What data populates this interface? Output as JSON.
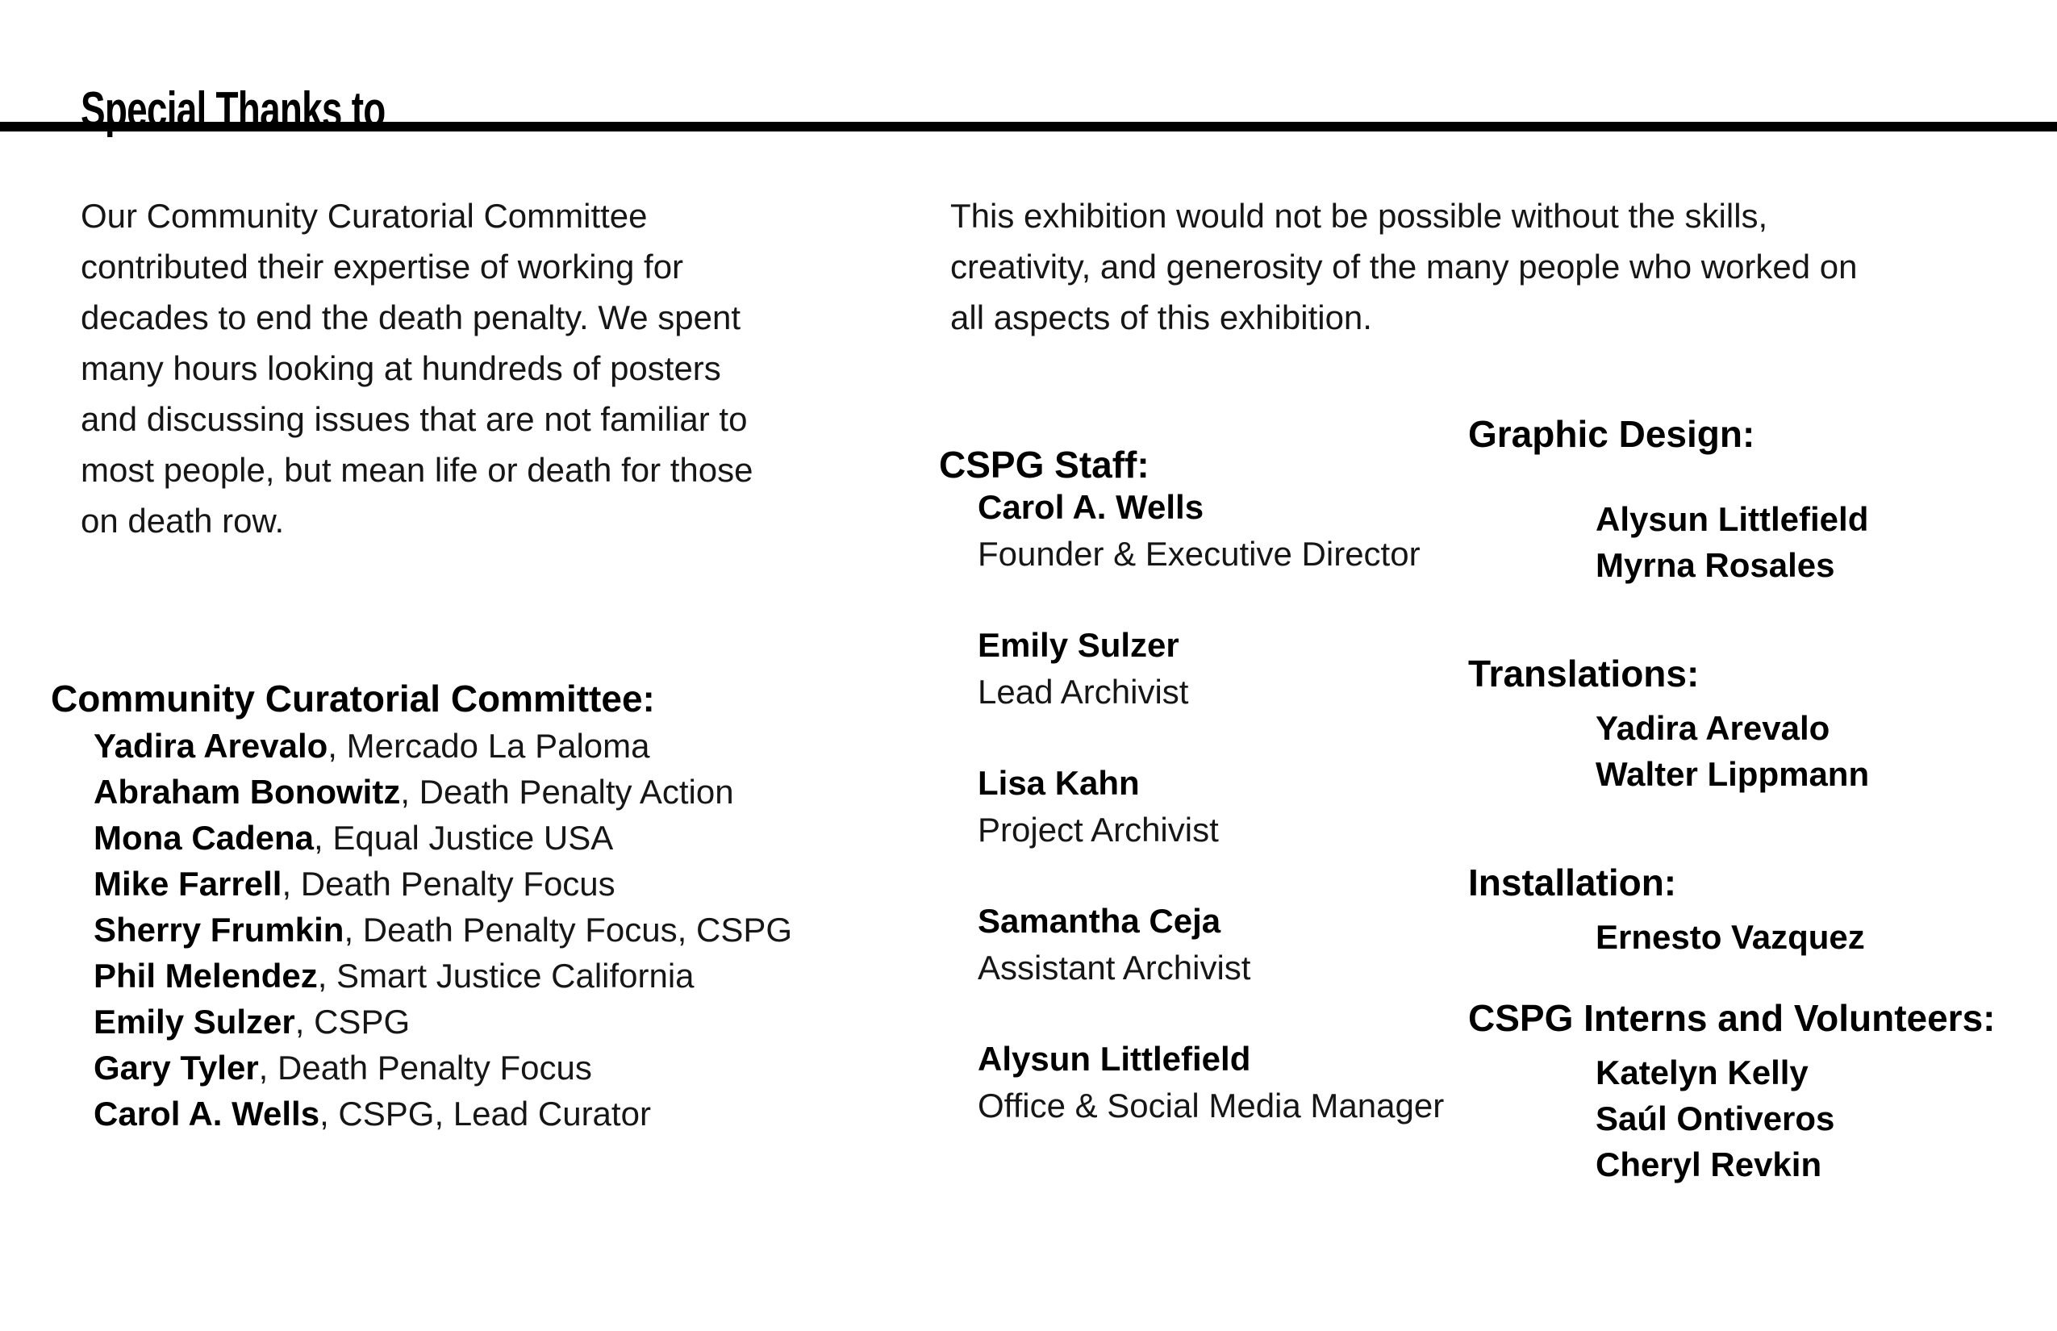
{
  "page": {
    "title": "Special Thanks to"
  },
  "left": {
    "intro_lines": [
      "Our Community Curatorial Committee",
      "contributed their expertise of working for",
      "decades to end the death penalty. We spent",
      "many hours looking at hundreds of posters",
      "and discussing issues that are not familiar to",
      "most people, but mean life or death for those",
      "on death row."
    ],
    "committee_heading": "Community Curatorial Committee:",
    "committee": [
      {
        "name": "Yadira Arevalo",
        "affiliation": ", Mercado La Paloma"
      },
      {
        "name": "Abraham Bonowitz",
        "affiliation": ", Death Penalty Action"
      },
      {
        "name": "Mona Cadena",
        "affiliation": ", Equal Justice USA"
      },
      {
        "name": "Mike Farrell",
        "affiliation": ", Death Penalty Focus"
      },
      {
        "name": "Sherry Frumkin",
        "affiliation": ", Death Penalty Focus, CSPG"
      },
      {
        "name": "Phil Melendez",
        "affiliation": ", Smart Justice California"
      },
      {
        "name": "Emily Sulzer",
        "affiliation": ", CSPG"
      },
      {
        "name": "Gary Tyler",
        "affiliation": ", Death Penalty Focus"
      },
      {
        "name": "Carol A. Wells",
        "affiliation": ", CSPG, Lead Curator"
      }
    ]
  },
  "middle": {
    "intro_lines": [
      "This exhibition would not be possible without the skills,",
      "creativity, and generosity of the many people who worked on",
      "all aspects of this exhibition."
    ],
    "staff_heading": "CSPG Staff:",
    "staff": [
      {
        "name": "Carol A. Wells",
        "role": "Founder & Executive Director"
      },
      {
        "name": "Emily Sulzer",
        "role": "Lead Archivist"
      },
      {
        "name": "Lisa Kahn",
        "role": "Project Archivist"
      },
      {
        "name": "Samantha Ceja",
        "role": "Assistant Archivist"
      },
      {
        "name": "Alysun Littlefield",
        "role": "Office & Social Media Manager"
      }
    ]
  },
  "right": {
    "graphic_design": {
      "heading": "Graphic Design:",
      "names": [
        "Alysun Littlefield",
        "Myrna Rosales"
      ]
    },
    "translations": {
      "heading": "Translations:",
      "names": [
        "Yadira Arevalo",
        "Walter Lippmann"
      ]
    },
    "installation": {
      "heading": "Installation:",
      "names": [
        "Ernesto Vazquez"
      ]
    },
    "interns": {
      "heading": "CSPG Interns and Volunteers:",
      "names": [
        "Katelyn Kelly",
        "Saúl Ontiveros",
        "Cheryl Revkin"
      ]
    }
  }
}
